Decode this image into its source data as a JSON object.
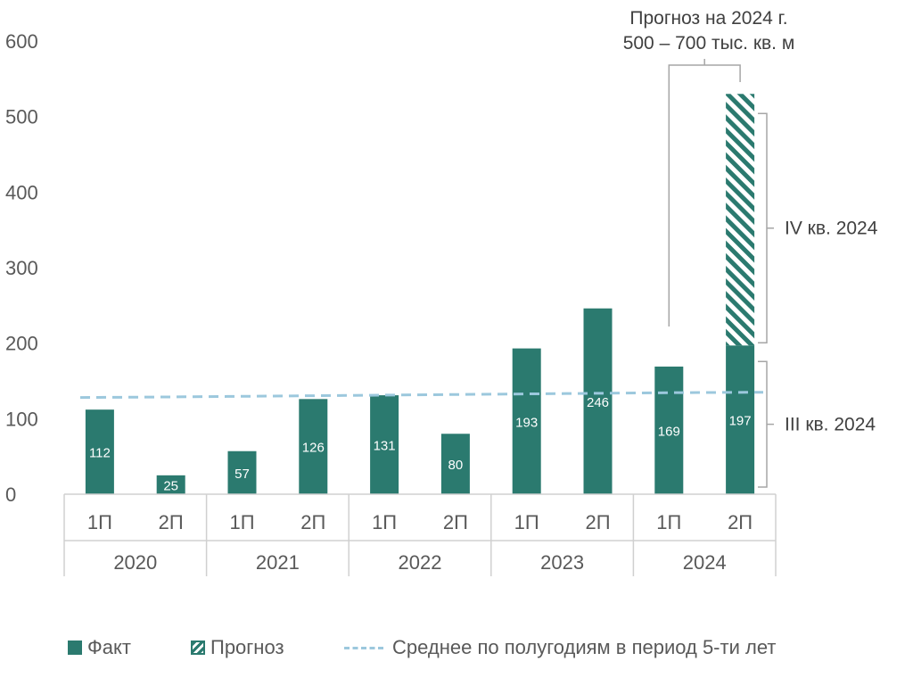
{
  "chart_data": {
    "type": "bar",
    "ylim": [
      0,
      600
    ],
    "y_ticks": [
      "0",
      "100",
      "200",
      "300",
      "400",
      "500",
      "600"
    ],
    "grid": false,
    "categories": [
      "1П",
      "2П",
      "1П",
      "2П",
      "1П",
      "2П",
      "1П",
      "2П",
      "1П",
      "2П"
    ],
    "groups": [
      "2020",
      "2021",
      "2022",
      "2023",
      "2024"
    ],
    "series": [
      {
        "name": "Факт",
        "color": "#2b7a6f",
        "values": [
          112,
          25,
          57,
          126,
          131,
          80,
          193,
          246,
          169,
          197
        ]
      },
      {
        "name": "Прогноз",
        "color": "#2b7a6f",
        "pattern": "hatched",
        "values": [
          null,
          null,
          null,
          null,
          null,
          null,
          null,
          null,
          null,
          333
        ]
      },
      {
        "name": "Среднее по полугодиям в период 5-ти лет",
        "color": "#9cc8dd",
        "style": "dashed-line",
        "values": [
          128,
          128.8,
          129.6,
          130.4,
          131.2,
          132,
          132.8,
          133.6,
          134.4,
          135
        ]
      }
    ],
    "annotations": {
      "forecast_line1": "Прогноз на 2024 г.",
      "forecast_line2": "500 – 700 тыс. кв. м",
      "q4": "IV кв. 2024",
      "q3": "III кв. 2024"
    },
    "legend_position": "bottom"
  }
}
